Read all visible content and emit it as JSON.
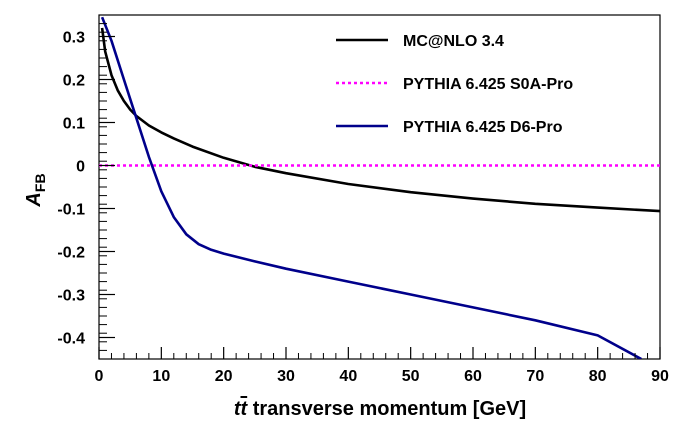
{
  "chart_data": {
    "type": "line",
    "xlabel": "tt̄ transverse momentum [GeV]",
    "xlabel_parts": {
      "t1": "t",
      "t2": "t",
      "rest": " transverse momentum [GeV]"
    },
    "ylabel": "A_FB",
    "ylabel_parts": {
      "main": "A",
      "sub": "FB"
    },
    "xlim": [
      0,
      90
    ],
    "ylim": [
      -0.45,
      0.35
    ],
    "xticks": [
      0,
      10,
      20,
      30,
      40,
      50,
      60,
      70,
      80,
      90
    ],
    "yticks": [
      0.3,
      0.2,
      0.1,
      0,
      -0.1,
      -0.2,
      -0.3,
      -0.4
    ],
    "ytick_labels": [
      "0.3",
      "0.2",
      "0.1",
      "0",
      "-0.1",
      "-0.2",
      "-0.3",
      "-0.4"
    ],
    "grid": false,
    "legend_position": "top-right",
    "series": [
      {
        "name": "MC@NLO 3.4",
        "color": "#000000",
        "style": "solid",
        "x": [
          0.5,
          1,
          2,
          3,
          4,
          5,
          6,
          8,
          10,
          12,
          15,
          20,
          25,
          30,
          40,
          50,
          60,
          70,
          80,
          90
        ],
        "y": [
          0.32,
          0.265,
          0.21,
          0.175,
          0.15,
          0.13,
          0.115,
          0.093,
          0.077,
          0.063,
          0.044,
          0.018,
          -0.003,
          -0.018,
          -0.043,
          -0.062,
          -0.077,
          -0.089,
          -0.098,
          -0.106
        ]
      },
      {
        "name": "PYTHIA 6.425 S0A-Pro",
        "color": "#ff00ff",
        "style": "dotted",
        "x": [
          0,
          90
        ],
        "y": [
          0,
          0
        ]
      },
      {
        "name": "PYTHIA 6.425 D6-Pro",
        "color": "#00008b",
        "style": "solid",
        "x": [
          0.5,
          2,
          4,
          6,
          8,
          10,
          12,
          14,
          16,
          18,
          20,
          25,
          30,
          40,
          50,
          60,
          70,
          80,
          87
        ],
        "y": [
          0.345,
          0.29,
          0.2,
          0.11,
          0.02,
          -0.06,
          -0.12,
          -0.16,
          -0.183,
          -0.196,
          -0.205,
          -0.223,
          -0.24,
          -0.27,
          -0.3,
          -0.33,
          -0.36,
          -0.395,
          -0.45
        ]
      }
    ]
  }
}
